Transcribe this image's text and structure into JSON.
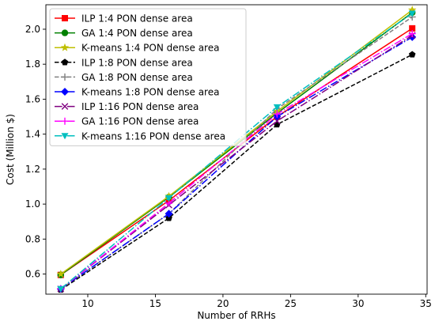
{
  "chart_data": {
    "type": "line",
    "xlabel": "Number of RRHs",
    "ylabel": "Cost (Million $)",
    "xlim": [
      6.9,
      35.1
    ],
    "ylim": [
      0.485,
      2.14
    ],
    "xticks": [
      "10",
      "15",
      "20",
      "25",
      "30",
      "35"
    ],
    "yticks": [
      "0.6",
      "0.8",
      "1.0",
      "1.2",
      "1.4",
      "1.6",
      "1.8",
      "2.0"
    ],
    "grid": false,
    "legend_position": "top-left",
    "x": [
      8,
      16,
      24,
      34
    ],
    "series": [
      {
        "name": "ILP 1:4 PON dense area",
        "values": [
          0.595,
          1.02,
          1.5,
          2.005
        ],
        "color": "#ff0000",
        "dash": "solid",
        "marker": "square"
      },
      {
        "name": "GA 1:4 PON dense area",
        "values": [
          0.595,
          1.04,
          1.52,
          2.095
        ],
        "color": "#008000",
        "dash": "solid",
        "marker": "circle"
      },
      {
        "name": "K-means 1:4 PON dense area",
        "values": [
          0.6,
          1.045,
          1.53,
          2.11
        ],
        "color": "#bfbf00",
        "dash": "solid",
        "marker": "star"
      },
      {
        "name": "ILP 1:8 PON dense area",
        "values": [
          0.51,
          0.92,
          1.455,
          1.855
        ],
        "color": "#000000",
        "dash": "dashed",
        "marker": "pentagon"
      },
      {
        "name": "GA 1:8 PON dense area",
        "values": [
          0.515,
          0.945,
          1.545,
          2.07
        ],
        "color": "#808080",
        "dash": "dashed",
        "marker": "plus"
      },
      {
        "name": "K-means 1:8 PON dense area",
        "values": [
          0.515,
          0.945,
          1.5,
          1.955
        ],
        "color": "#0000ff",
        "dash": "dashdot",
        "marker": "diamond"
      },
      {
        "name": "ILP 1:16 PON dense area",
        "values": [
          0.515,
          0.995,
          1.475,
          1.965
        ],
        "color": "#800080",
        "dash": "dashdot",
        "marker": "x"
      },
      {
        "name": "GA 1:16 PON dense area",
        "values": [
          0.515,
          1.005,
          1.515,
          1.975
        ],
        "color": "#ff00ff",
        "dash": "dashdot",
        "marker": "plus"
      },
      {
        "name": "K-means 1:16 PON dense area",
        "values": [
          0.515,
          1.035,
          1.555,
          2.09
        ],
        "color": "#00bfbf",
        "dash": "dashdot",
        "marker": "triangle-down"
      }
    ]
  }
}
